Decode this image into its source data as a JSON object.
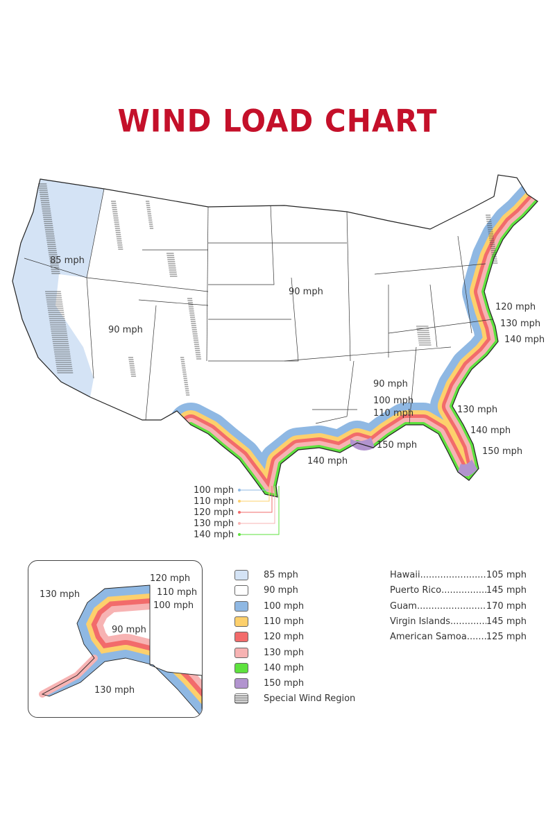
{
  "title": "WIND LOAD CHART",
  "colors": {
    "title": "#c4102a",
    "85": "#d4e3f5",
    "90": "#ffffff",
    "100": "#8fb8e3",
    "110": "#fdd06c",
    "120": "#f26b6b",
    "130": "#f7b3b3",
    "140": "#5ee23e",
    "150": "#b294cf"
  },
  "map_labels": {
    "west": "85 mph",
    "mountain": "90 mph",
    "central": "90 mph",
    "se_90": "90 mph",
    "se_100": "100 mph",
    "se_110": "110 mph",
    "east_120": "120 mph",
    "east_130": "130 mph",
    "east_140": "140 mph",
    "fl_130": "130 mph",
    "fl_140": "140 mph",
    "fl_150": "150 mph",
    "gulf_150": "150 mph",
    "gulf_140": "140 mph"
  },
  "texas_callouts": [
    "100 mph",
    "110 mph",
    "120 mph",
    "130 mph",
    "140 mph"
  ],
  "alaska_labels": {
    "a120": "120 mph",
    "a110": "110 mph",
    "a100": "100 mph",
    "a130_top": "130 mph",
    "a90": "90 mph",
    "a130_bottom": "130 mph"
  },
  "legend": [
    {
      "label": "85 mph",
      "color": "#d4e3f5"
    },
    {
      "label": "90 mph",
      "color": "#ffffff"
    },
    {
      "label": "100 mph",
      "color": "#8fb8e3"
    },
    {
      "label": "110 mph",
      "color": "#fdd06c"
    },
    {
      "label": "120 mph",
      "color": "#f26b6b"
    },
    {
      "label": "130 mph",
      "color": "#f7b3b3"
    },
    {
      "label": "140 mph",
      "color": "#5ee23e"
    },
    {
      "label": "150 mph",
      "color": "#b294cf"
    },
    {
      "label": "Special Wind Region",
      "pattern": "hatched"
    }
  ],
  "territories": [
    {
      "name": "Hawaii",
      "value": "105 mph"
    },
    {
      "name": "Puerto Rico",
      "value": "145 mph"
    },
    {
      "name": "Guam",
      "value": "170 mph"
    },
    {
      "name": "Virgin Islands",
      "value": "145 mph"
    },
    {
      "name": "American Samoa",
      "value": "125 mph"
    }
  ]
}
